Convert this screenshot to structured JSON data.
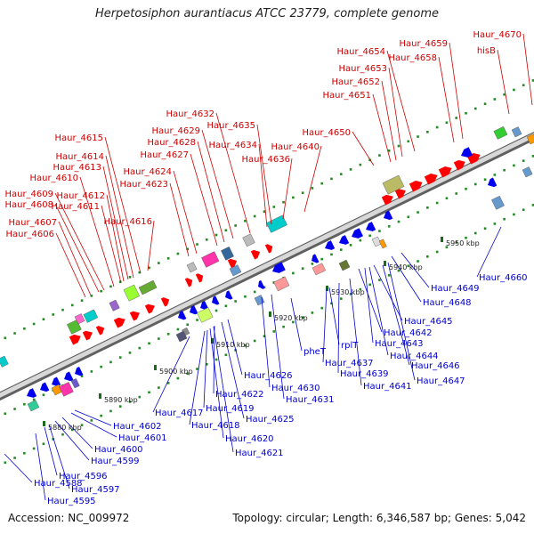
{
  "title": "Herpetosiphon aurantiacus ATCC 23779, complete genome",
  "footer": {
    "accession": "Accession: NC_009972",
    "summary": "Topology: circular; Length: 6,346,587 bp; Genes: 5,042"
  },
  "colors": {
    "forward_label": "#cc0000",
    "reverse_label": "#0000cc",
    "forward_gene": "#ff0000",
    "reverse_gene": "#0000ee",
    "backbone": "#a8a8a8",
    "tick": "#228b22"
  },
  "ruler": [
    "5880 kbp",
    "5890 kbp",
    "5900 kbp",
    "5910 kbp",
    "5920 kbp",
    "5930 kbp",
    "5940 kbp",
    "5950 kbp"
  ],
  "forward_labels": [
    "Haur_4606",
    "Haur_4607",
    "Haur_4608",
    "Haur_4609",
    "Haur_4610",
    "Haur_4611",
    "Haur_4612",
    "Haur_4613",
    "Haur_4614",
    "Haur_4615",
    "Haur_4616",
    "Haur_4623",
    "Haur_4624",
    "Haur_4627",
    "Haur_4628",
    "Haur_4629",
    "Haur_4632",
    "Haur_4634",
    "Haur_4635",
    "Haur_4636",
    "Haur_4640",
    "Haur_4650",
    "Haur_4651",
    "Haur_4652",
    "Haur_4653",
    "Haur_4654",
    "Haur_4658",
    "Haur_4659",
    "hisB",
    "Haur_4670"
  ],
  "reverse_labels": [
    "Haur_4588",
    "Haur_4595",
    "Haur_4596",
    "Haur_4597",
    "Haur_4599",
    "Haur_4600",
    "Haur_4601",
    "Haur_4602",
    "Haur_4617",
    "Haur_4618",
    "Haur_4619",
    "Haur_4620",
    "Haur_4621",
    "Haur_4622",
    "Haur_4625",
    "Haur_4626",
    "Haur_4630",
    "Haur_4631",
    "pheT",
    "rplT",
    "Haur_4637",
    "Haur_4639",
    "Haur_4641",
    "Haur_4642",
    "Haur_4643",
    "Haur_4644",
    "Haur_4645",
    "Haur_4646",
    "Haur_4647",
    "Haur_4648",
    "Haur_4649",
    "Haur_4660"
  ]
}
